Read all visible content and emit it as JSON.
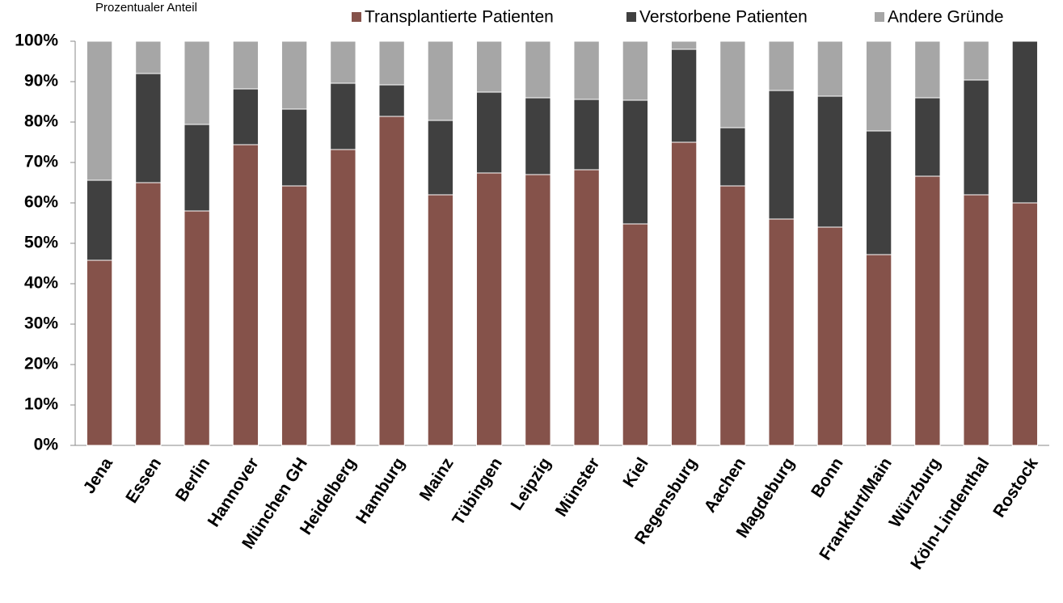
{
  "chart_data": {
    "type": "stacked_bar",
    "y_axis_label": "Prozentualer Anteil",
    "categories": [
      "Jena",
      "Essen",
      "Berlin",
      "Hannover",
      "München GH",
      "Heidelberg",
      "Hamburg",
      "Mainz",
      "Tübingen",
      "Leipzig",
      "Münster",
      "Kiel",
      "Regensburg",
      "Aachen",
      "Magdeburg",
      "Bonn",
      "Frankfurt/Main",
      "Würzburg",
      "Köln-Lindenthal",
      "Rostock"
    ],
    "series": [
      {
        "name": "Transplantierte Patienten",
        "color": "#85524a",
        "values": [
          45.8,
          65,
          58,
          74.4,
          64.2,
          73.2,
          81.4,
          62,
          67.4,
          67,
          68.2,
          54.8,
          75,
          64.2,
          56,
          54,
          47.2,
          66.6,
          62,
          60
        ]
      },
      {
        "name": "Verstorbene Patienten",
        "color": "#404040",
        "values": [
          19.8,
          27,
          21.4,
          13.8,
          19,
          16.4,
          7.8,
          18.4,
          20,
          19,
          17.4,
          30.6,
          23,
          14.4,
          31.8,
          32.4,
          30.6,
          19.4,
          28.4,
          40
        ]
      },
      {
        "name": "Andere Gründe",
        "color": "#a6a6a6",
        "values": [
          34.4,
          8,
          20.6,
          11.8,
          16.8,
          10.4,
          10.8,
          19.6,
          12.6,
          14,
          14.4,
          14.6,
          2,
          21.4,
          12.2,
          13.6,
          22.2,
          14,
          9.6,
          0
        ]
      }
    ],
    "ylim": [
      0,
      100
    ],
    "yticks": [
      {
        "value": 0,
        "label": "0%"
      },
      {
        "value": 10,
        "label": "10%"
      },
      {
        "value": 20,
        "label": "20%"
      },
      {
        "value": 30,
        "label": "30%"
      },
      {
        "value": 40,
        "label": "40%"
      },
      {
        "value": 50,
        "label": "50%"
      },
      {
        "value": 60,
        "label": "60%"
      },
      {
        "value": 70,
        "label": "70%"
      },
      {
        "value": 80,
        "label": "80%"
      },
      {
        "value": 90,
        "label": "90%"
      },
      {
        "value": 100,
        "label": "100%"
      }
    ],
    "legend": "top"
  }
}
